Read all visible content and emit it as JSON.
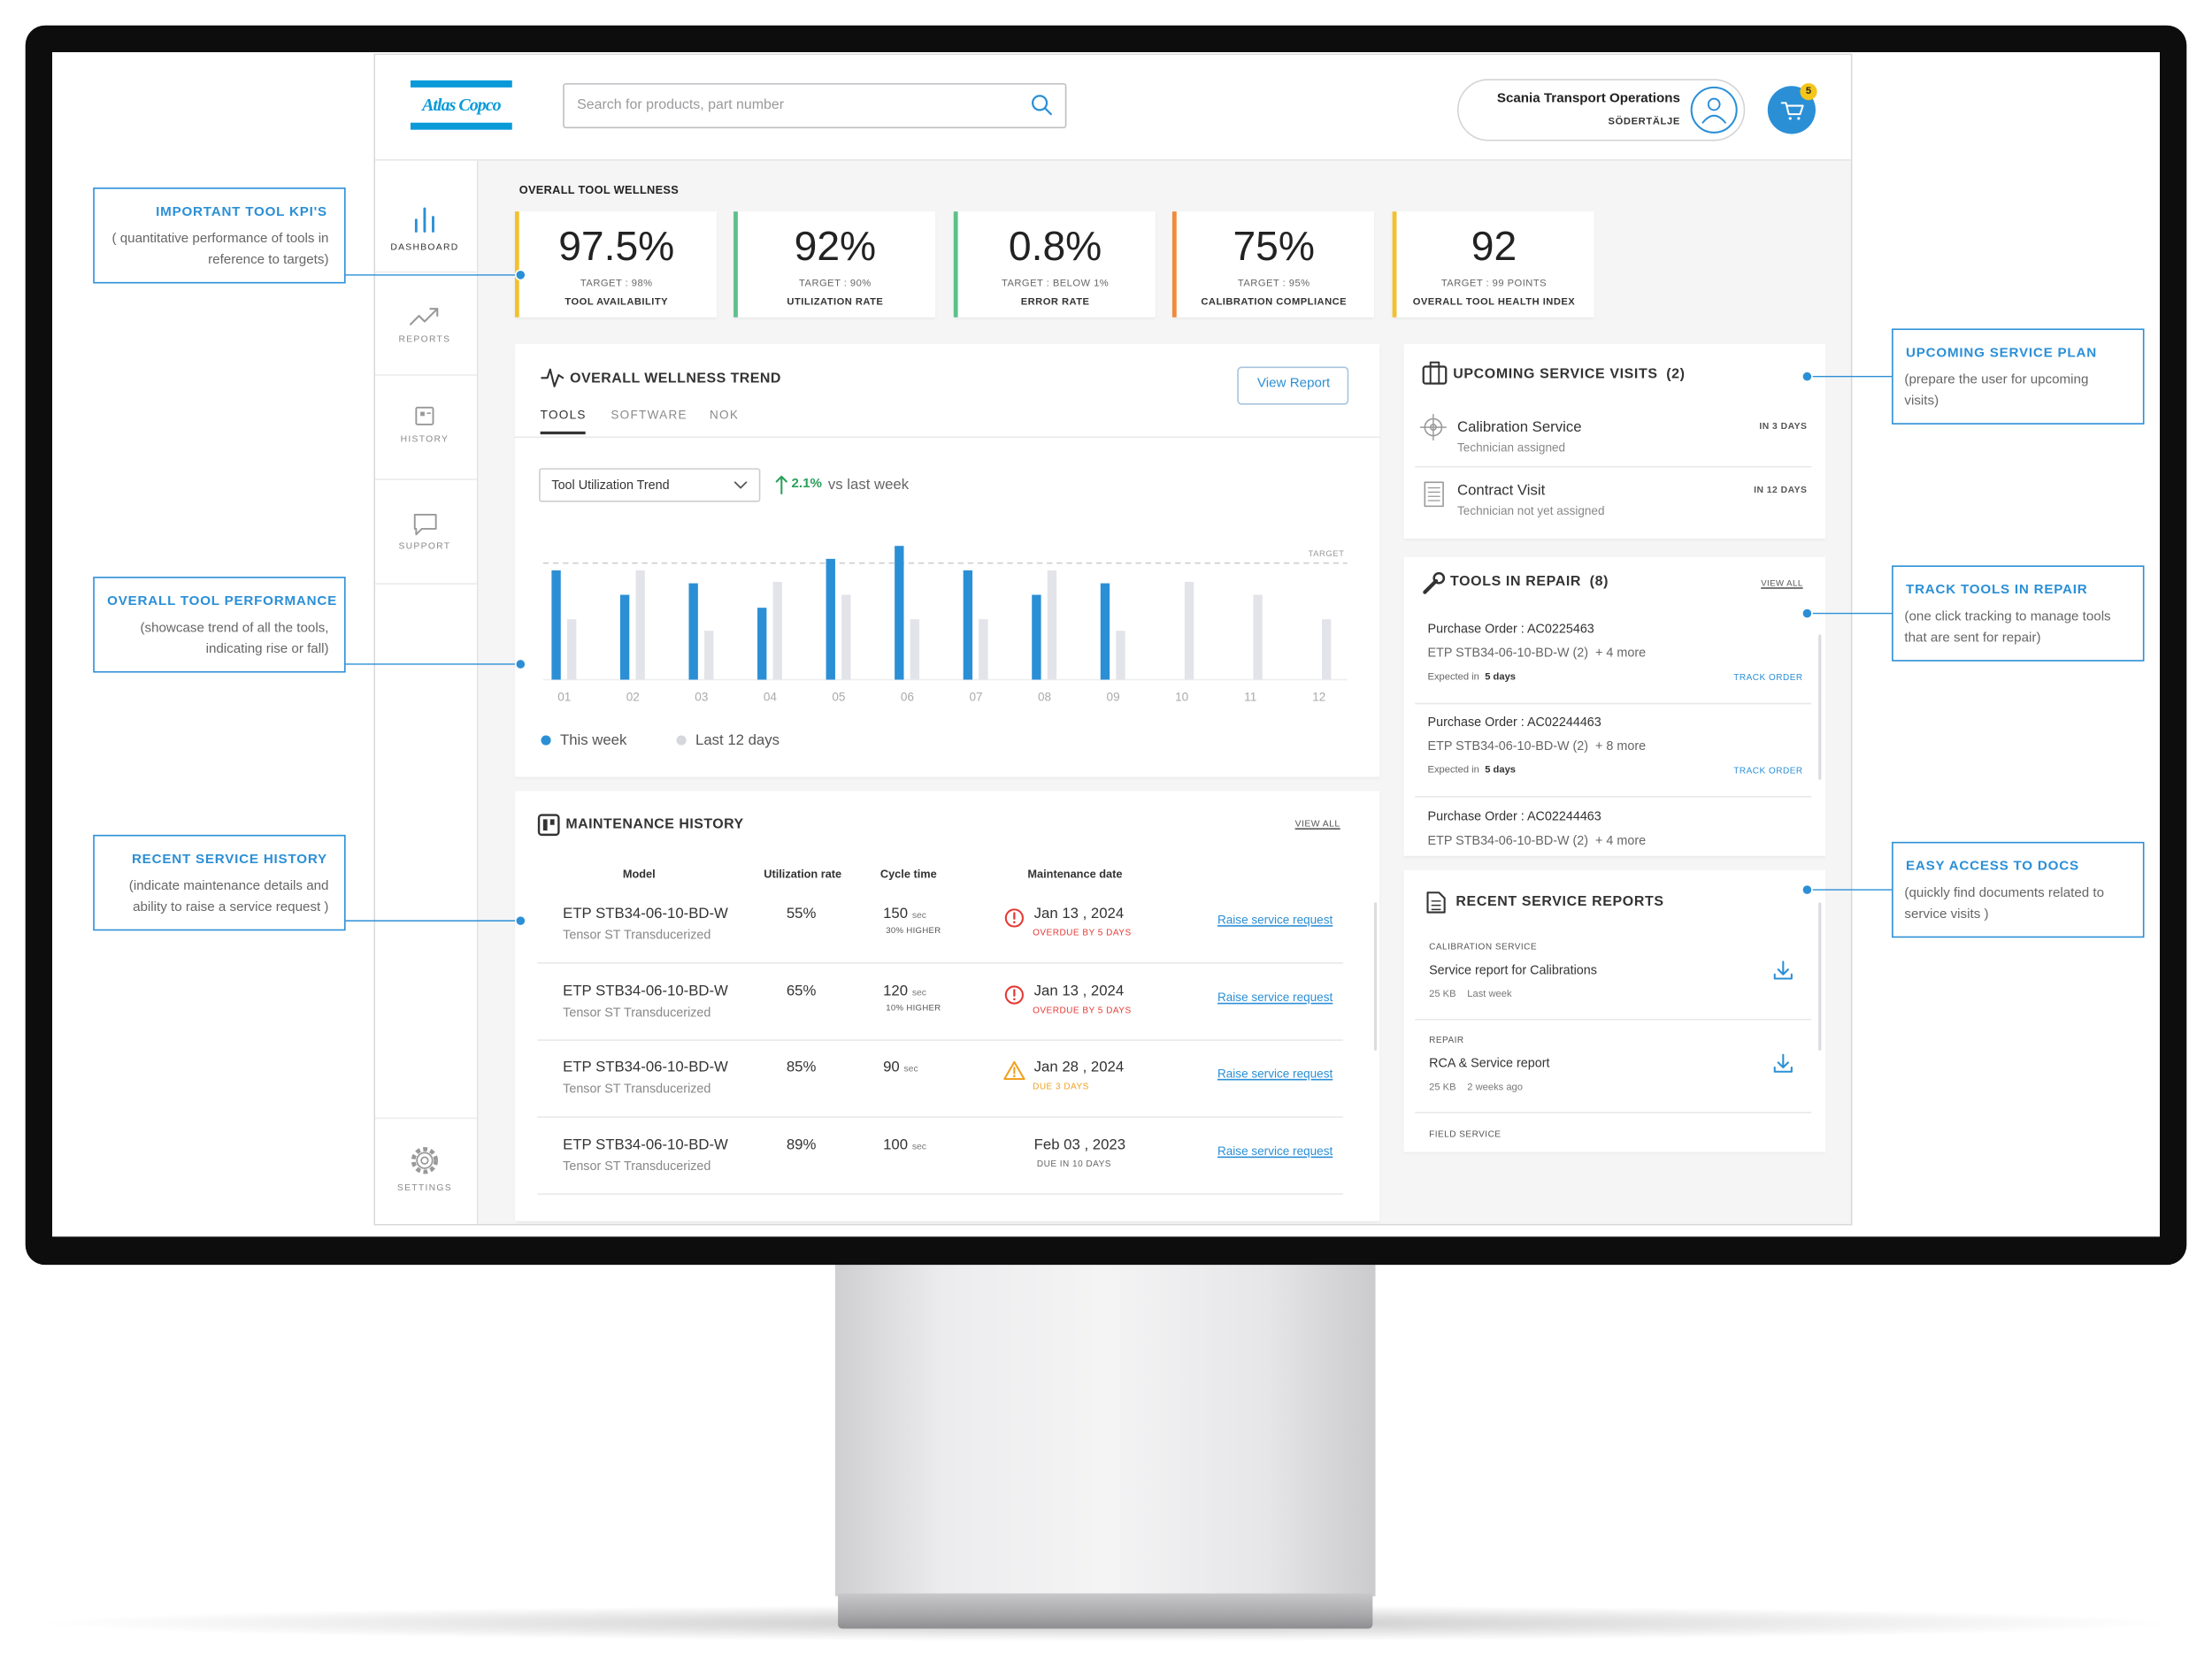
{
  "header": {
    "logo": "Atlas Copco",
    "search_placeholder": "Search for products, part number",
    "account": "Scania Transport Operations",
    "location": "SÖDERTÄLJE",
    "cart_count": "5"
  },
  "sidebar": [
    "DASHBOARD",
    "REPORTS",
    "HISTORY",
    "SUPPORT",
    "SETTINGS"
  ],
  "kpi_section": {
    "title": "OVERALL TOOL WELLNESS",
    "cards": [
      {
        "value": "97.5%",
        "target": "TARGET : 98%",
        "label": "TOOL AVAILABILITY",
        "color": "#f2c12e"
      },
      {
        "value": "92%",
        "target": "TARGET : 90%",
        "label": "UTILIZATION RATE",
        "color": "#5cc08a"
      },
      {
        "value": "0.8%",
        "target": "TARGET : BELOW 1%",
        "label": "ERROR RATE",
        "color": "#5cc08a"
      },
      {
        "value": "75%",
        "target": "TARGET : 95%",
        "label": "CALIBRATION COMPLIANCE",
        "color": "#f08a3a"
      },
      {
        "value": "92",
        "target": "TARGET : 99 POINTS",
        "label": "OVERALL TOOL HEALTH INDEX",
        "color": "#f2c12e"
      }
    ]
  },
  "trend": {
    "title": "OVERALL WELLNESS TREND",
    "button": "View Report",
    "tabs": [
      "TOOLS",
      "SOFTWARE",
      "NOK"
    ],
    "dropdown": "Tool Utilization Trend",
    "change": "2.1%",
    "change_note": "vs last week"
  },
  "chart_data": {
    "type": "bar",
    "categories": [
      "01",
      "02",
      "03",
      "04",
      "05",
      "06",
      "07",
      "08",
      "09",
      "10",
      "11",
      "12"
    ],
    "series": [
      {
        "name": "This week",
        "color": "#2b8fd6",
        "values": [
          76,
          59,
          67,
          50,
          84,
          93,
          76,
          59,
          67,
          null,
          null,
          null
        ]
      },
      {
        "name": "Last 12 days",
        "color": "#e3e4e9",
        "values": [
          42,
          76,
          34,
          68,
          59,
          42,
          42,
          76,
          34,
          68,
          59,
          42
        ]
      }
    ],
    "ylim": [
      0,
      100
    ],
    "target": {
      "value": 81,
      "label": "TARGET"
    }
  },
  "maintenance": {
    "title": "MAINTENANCE HISTORY",
    "view_all": "VIEW ALL",
    "columns": [
      "Model",
      "Utilization rate",
      "Cycle time",
      "Maintenance date"
    ],
    "rows": [
      {
        "model": "ETP STB34-06-10-BD-W",
        "model_detail": "Tensor ST Transducerized",
        "utilization": "55%",
        "cycle_time": "150",
        "cycle_unit": "sec",
        "cycle_note": "30% HIGHER",
        "date": "Jan 13 , 2024",
        "status": "OVERDUE BY 5 DAYS",
        "level": "error",
        "action": "Raise service request"
      },
      {
        "model": "ETP STB34-06-10-BD-W",
        "model_detail": "Tensor ST Transducerized",
        "utilization": "65%",
        "cycle_time": "120",
        "cycle_unit": "sec",
        "cycle_note": "10% HIGHER",
        "date": "Jan 13 , 2024",
        "status": "OVERDUE BY 5 DAYS",
        "level": "error",
        "action": "Raise service request"
      },
      {
        "model": "ETP STB34-06-10-BD-W",
        "model_detail": "Tensor ST Transducerized",
        "utilization": "85%",
        "cycle_time": "90",
        "cycle_unit": "sec",
        "date": "Jan 28 , 2024",
        "status": "DUE 3 DAYS",
        "level": "warning",
        "action": "Raise service request"
      },
      {
        "model": "ETP STB34-06-10-BD-W",
        "model_detail": "Tensor ST Transducerized",
        "utilization": "89%",
        "cycle_time": "100",
        "cycle_unit": "sec",
        "date": "Feb 03 , 2023",
        "status": "DUE IN 10 DAYS",
        "level": "info",
        "action": "Raise service request"
      }
    ]
  },
  "service_visits": {
    "title": "UPCOMING SERVICE VISITS",
    "count": "(2)",
    "items": [
      {
        "name": "Calibration Service",
        "detail": "Technician assigned",
        "when": "IN 3 DAYS",
        "icon": "target"
      },
      {
        "name": "Contract Visit",
        "detail": "Technician not yet assigned",
        "when": "IN 12 DAYS",
        "icon": "document"
      }
    ]
  },
  "repairs": {
    "title": "TOOLS IN REPAIR",
    "count": "(8)",
    "view_all": "VIEW ALL",
    "items": [
      {
        "order": "Purchase Order : AC0225463",
        "tool": "ETP STB34-06-10-BD-W (2)",
        "more": "+ 4 more",
        "expected_label": "Expected in",
        "expected": "5 days",
        "action": "TRACK ORDER"
      },
      {
        "order": "Purchase Order : AC02244463",
        "tool": "ETP STB34-06-10-BD-W (2)",
        "more": "+ 8 more",
        "expected_label": "Expected in",
        "expected": "5 days",
        "action": "TRACK ORDER"
      },
      {
        "order": "Purchase Order : AC02244463",
        "tool": "ETP STB34-06-10-BD-W (2)",
        "more": "+ 4 more"
      }
    ]
  },
  "reports": {
    "title": "RECENT SERVICE REPORTS",
    "items": [
      {
        "category": "CALIBRATION SERVICE",
        "name": "Service report for Calibrations",
        "size": "25 KB",
        "age": "Last week"
      },
      {
        "category": "REPAIR",
        "name": "RCA & Service report",
        "size": "25 KB",
        "age": "2 weeks ago"
      },
      {
        "category": "FIELD SERVICE"
      }
    ]
  },
  "annotations": [
    {
      "title": "IMPORTANT TOOL KPI'S",
      "text": "( quantitative performance of tools in reference to targets)",
      "side": "left"
    },
    {
      "title": "OVERALL TOOL PERFORMANCE",
      "text": "(showcase trend of all the tools, indicating rise or fall)",
      "side": "left"
    },
    {
      "title": "RECENT SERVICE HISTORY",
      "text": "(indicate maintenance details and ability to raise a service request )",
      "side": "left"
    },
    {
      "title": "UPCOMING SERVICE PLAN",
      "text": "(prepare the user for upcoming visits)",
      "side": "right"
    },
    {
      "title": "TRACK TOOLS IN REPAIR",
      "text": "(one click tracking to manage tools that are sent for repair)",
      "side": "right"
    },
    {
      "title": "EASY ACCESS TO DOCS",
      "text": "(quickly find documents related to service visits )",
      "side": "right"
    }
  ]
}
